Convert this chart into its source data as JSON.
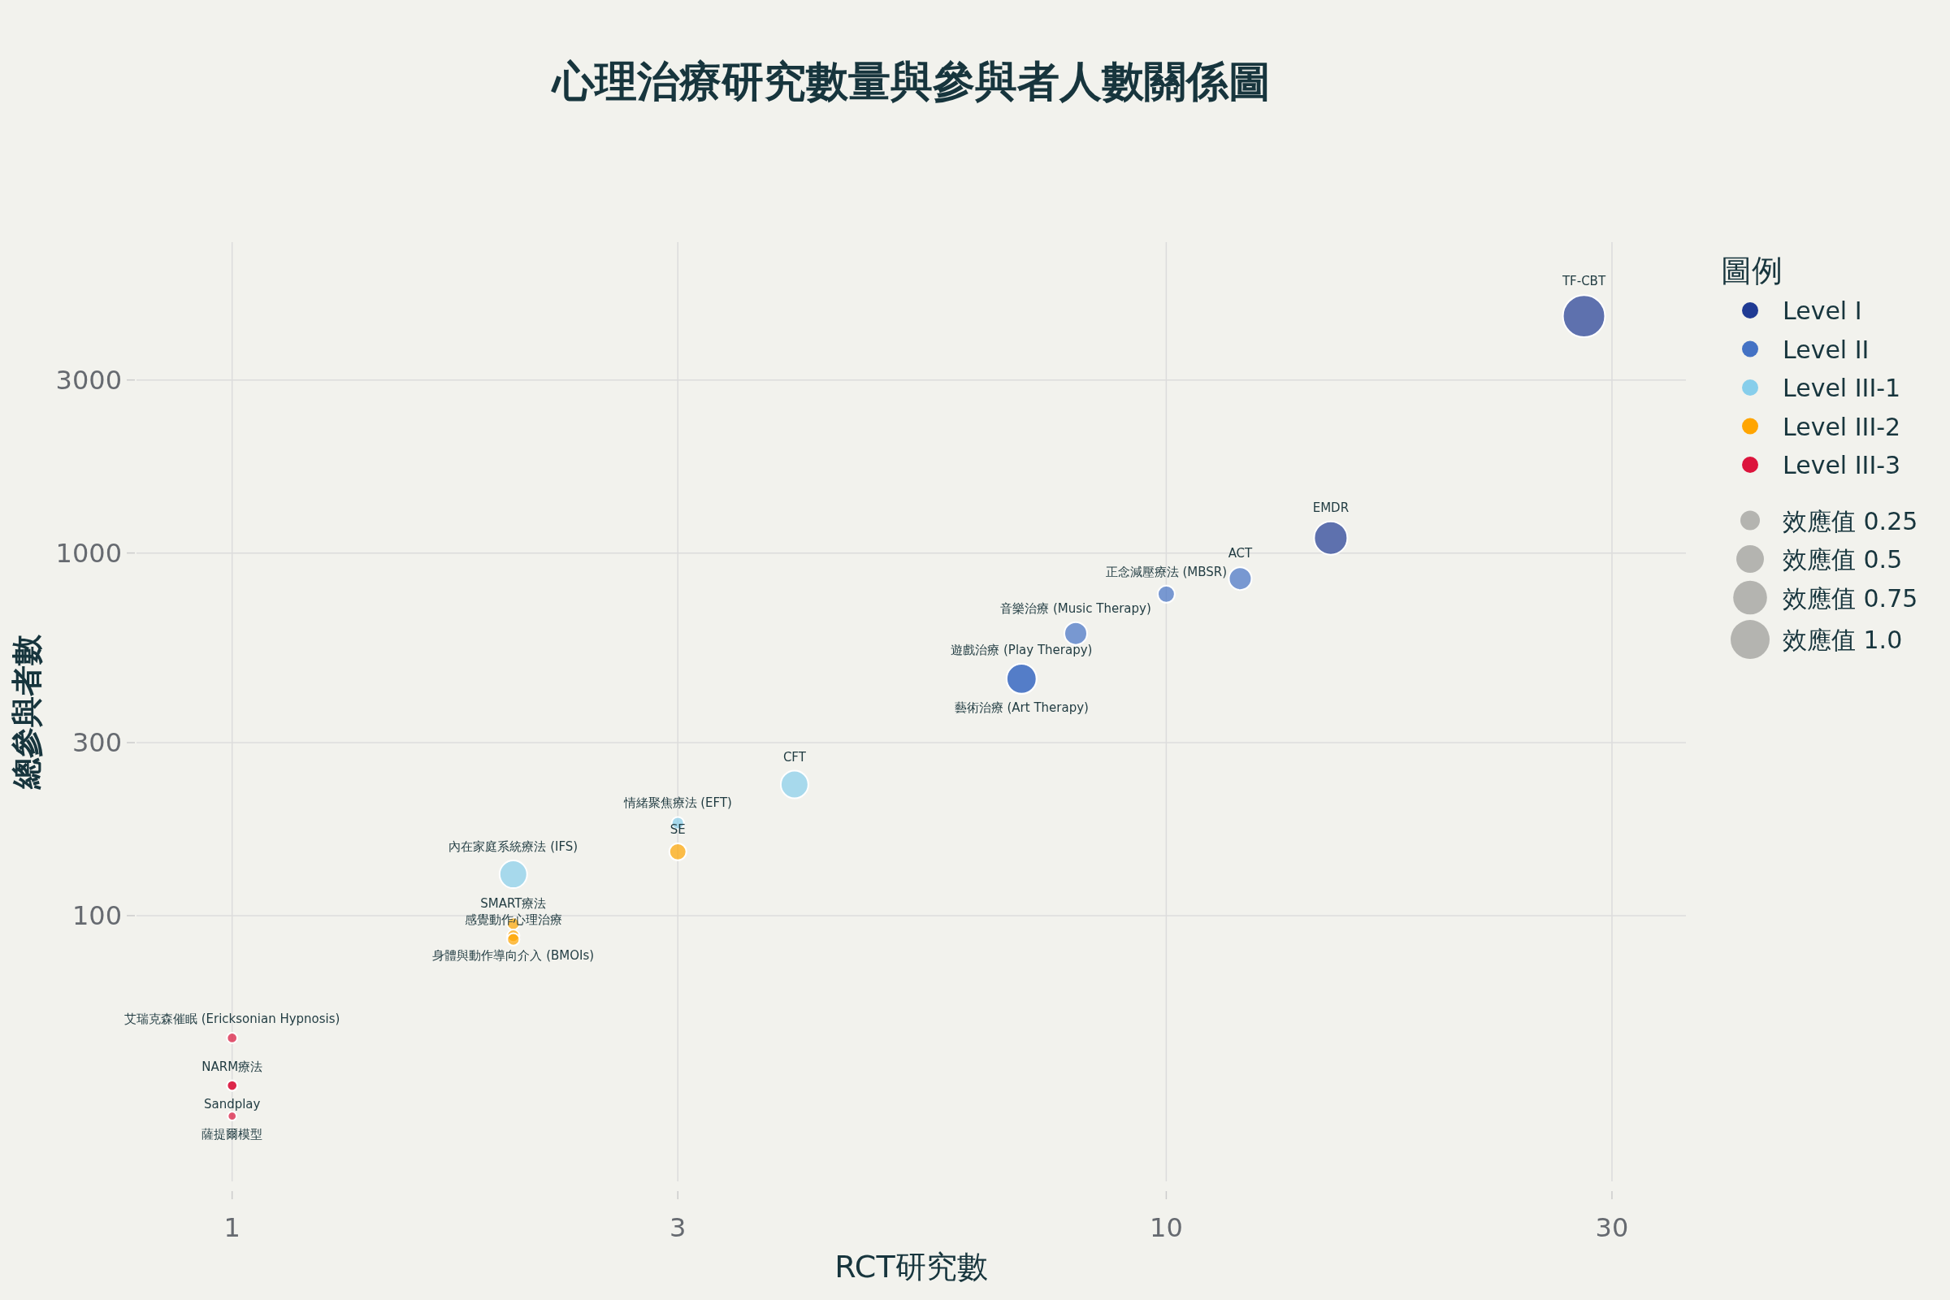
{
  "chart_data": {
    "type": "bubble",
    "title": "心理治療研究數量與參與者人數關係圖",
    "xlabel": "RCT研究數",
    "ylabel": "總參與者數",
    "legend_title": "圖例",
    "legend": "top right",
    "grid": true,
    "log": "xy",
    "marker": "circle",
    "xlim": [
      0.79,
      36
    ],
    "ylim": [
      18.5,
      7200
    ],
    "xticks": [
      1,
      3,
      10,
      30
    ],
    "yticks": [
      100,
      300,
      1000,
      3000
    ],
    "size_legend": [
      {
        "value": 0.25,
        "label": "效應值 0.25"
      },
      {
        "value": 0.5,
        "label": "效應值 0.5"
      },
      {
        "value": 0.75,
        "label": "效應值 0.75"
      },
      {
        "value": 1.0,
        "label": "效應值 1.0"
      }
    ],
    "series": [
      {
        "name": "Level I",
        "color": "#1f3a93",
        "x": [
          28,
          15
        ],
        "values": [
          4500,
          1100
        ],
        "sizes": [
          1.17,
          0.73
        ]
      },
      {
        "name": "Level II",
        "color": "#4472c4",
        "x": [
          12,
          10,
          8,
          7,
          7
        ],
        "values": [
          850,
          770,
          600,
          450,
          450
        ],
        "sizes": [
          0.34,
          0.19,
          0.34,
          0.59,
          0.59
        ]
      },
      {
        "name": "Level III-1",
        "color": "#87ceeb",
        "x": [
          4,
          3,
          2
        ],
        "values": [
          230,
          180,
          130
        ],
        "sizes": [
          0.5,
          0.1,
          0.5
        ]
      },
      {
        "name": "Level III-2",
        "color": "#ffa500",
        "x": [
          3,
          2,
          2,
          2
        ],
        "values": [
          150,
          95,
          88,
          86
        ],
        "sizes": [
          0.19,
          0.1,
          0.1,
          0.1
        ]
      },
      {
        "name": "Level III-3",
        "color": "#dc143c",
        "x": [
          1,
          1,
          1,
          1
        ],
        "values": [
          46,
          34,
          34,
          28
        ],
        "sizes": [
          0.07,
          0.07,
          0.07,
          0.05
        ]
      }
    ],
    "annotations": [
      {
        "text": "TF-CBT",
        "x": 28,
        "y": 4500
      },
      {
        "text": "EMDR",
        "x": 15,
        "y": 1100
      },
      {
        "text": "ACT",
        "x": 12,
        "y": 850
      },
      {
        "text": "正念減壓療法 (MBSR)",
        "x": 10,
        "y": 770
      },
      {
        "text": "音樂治療 (Music Therapy)",
        "x": 8,
        "y": 600
      },
      {
        "text": "遊戲治療 (Play Therapy)",
        "x": 7,
        "y": 450
      },
      {
        "text": "藝術治療 (Art Therapy)",
        "x": 7,
        "y": 450
      },
      {
        "text": "CFT",
        "x": 4,
        "y": 230
      },
      {
        "text": "情緒聚焦療法 (EFT)",
        "x": 3,
        "y": 180
      },
      {
        "text": "內在家庭系統療法 (IFS)",
        "x": 2,
        "y": 130
      },
      {
        "text": "SE",
        "x": 3,
        "y": 150
      },
      {
        "text": "SMART療法",
        "x": 2,
        "y": 95
      },
      {
        "text": "身體與動作導向介入 (BMOIs)",
        "x": 2,
        "y": 88
      },
      {
        "text": "感覺動作心理治療",
        "x": 2,
        "y": 86
      },
      {
        "text": "艾瑞克森催眠 (Ericksonian Hypnosis)",
        "x": 1,
        "y": 46
      },
      {
        "text": "NARM療法",
        "x": 1,
        "y": 34
      },
      {
        "text": "Sandplay",
        "x": 1,
        "y": 34
      },
      {
        "text": "薩提爾模型",
        "x": 1,
        "y": 28
      }
    ]
  }
}
